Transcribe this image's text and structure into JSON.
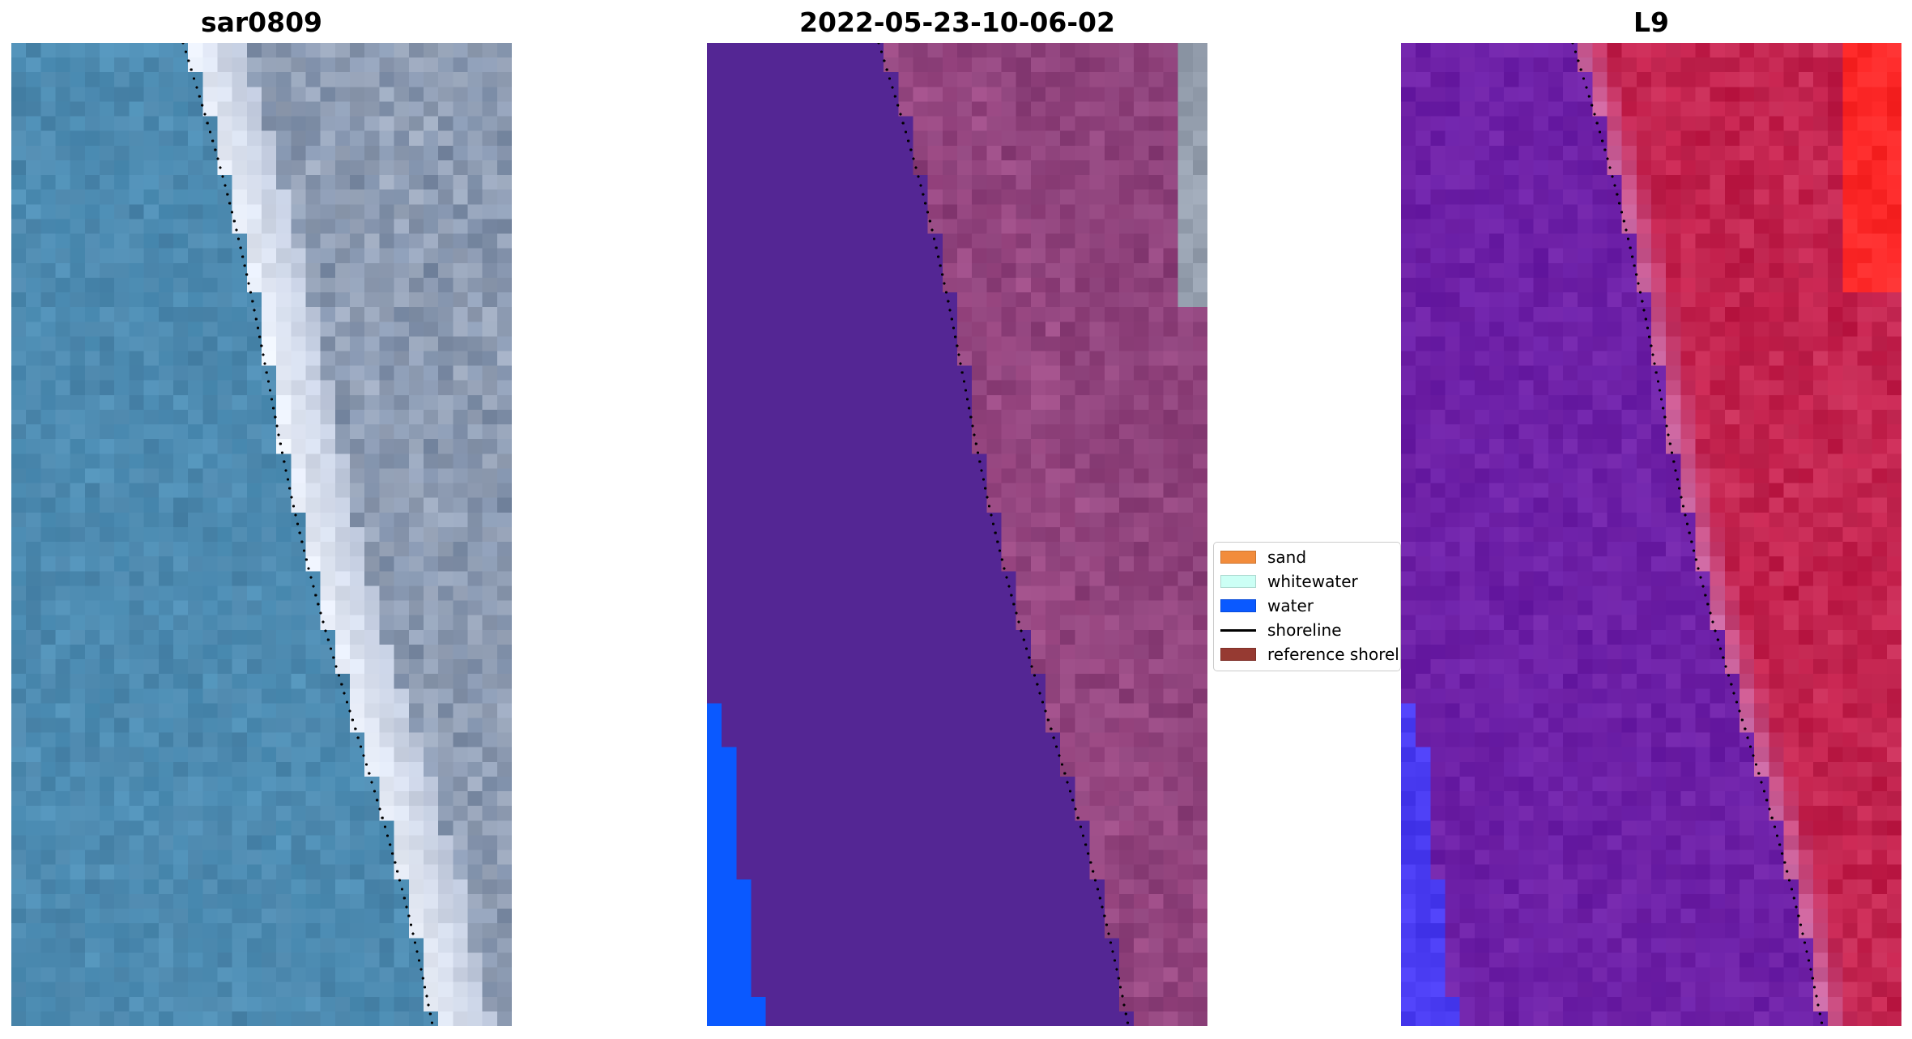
{
  "panels": [
    {
      "title": "sar0809",
      "kind": "rgb-image"
    },
    {
      "title": "2022-05-23-10-06-02",
      "kind": "classified-image"
    },
    {
      "title": "L9",
      "kind": "index-image"
    }
  ],
  "legend": {
    "items": [
      {
        "label": "sand",
        "color": "#f28c3c",
        "kind": "patch"
      },
      {
        "label": "whitewater",
        "color": "#ccfff5",
        "kind": "patch"
      },
      {
        "label": "water",
        "color": "#0a59ff",
        "kind": "patch"
      },
      {
        "label": "shoreline",
        "color": "#000000",
        "kind": "line"
      },
      {
        "label": "reference shoreline",
        "color": "#963a32",
        "kind": "patch"
      }
    ]
  },
  "colors": {
    "ocean": "#4c86ab",
    "land_rgb": "#9aa6ba",
    "classified_water_area": "#542694",
    "classified_land": "#8a3f78",
    "water_class": "#0a59ff",
    "index_water": "#6a1ea6",
    "index_land": "#c21e4a",
    "index_bright": "#ff2a2a",
    "index_low": "#4a3cf2"
  }
}
